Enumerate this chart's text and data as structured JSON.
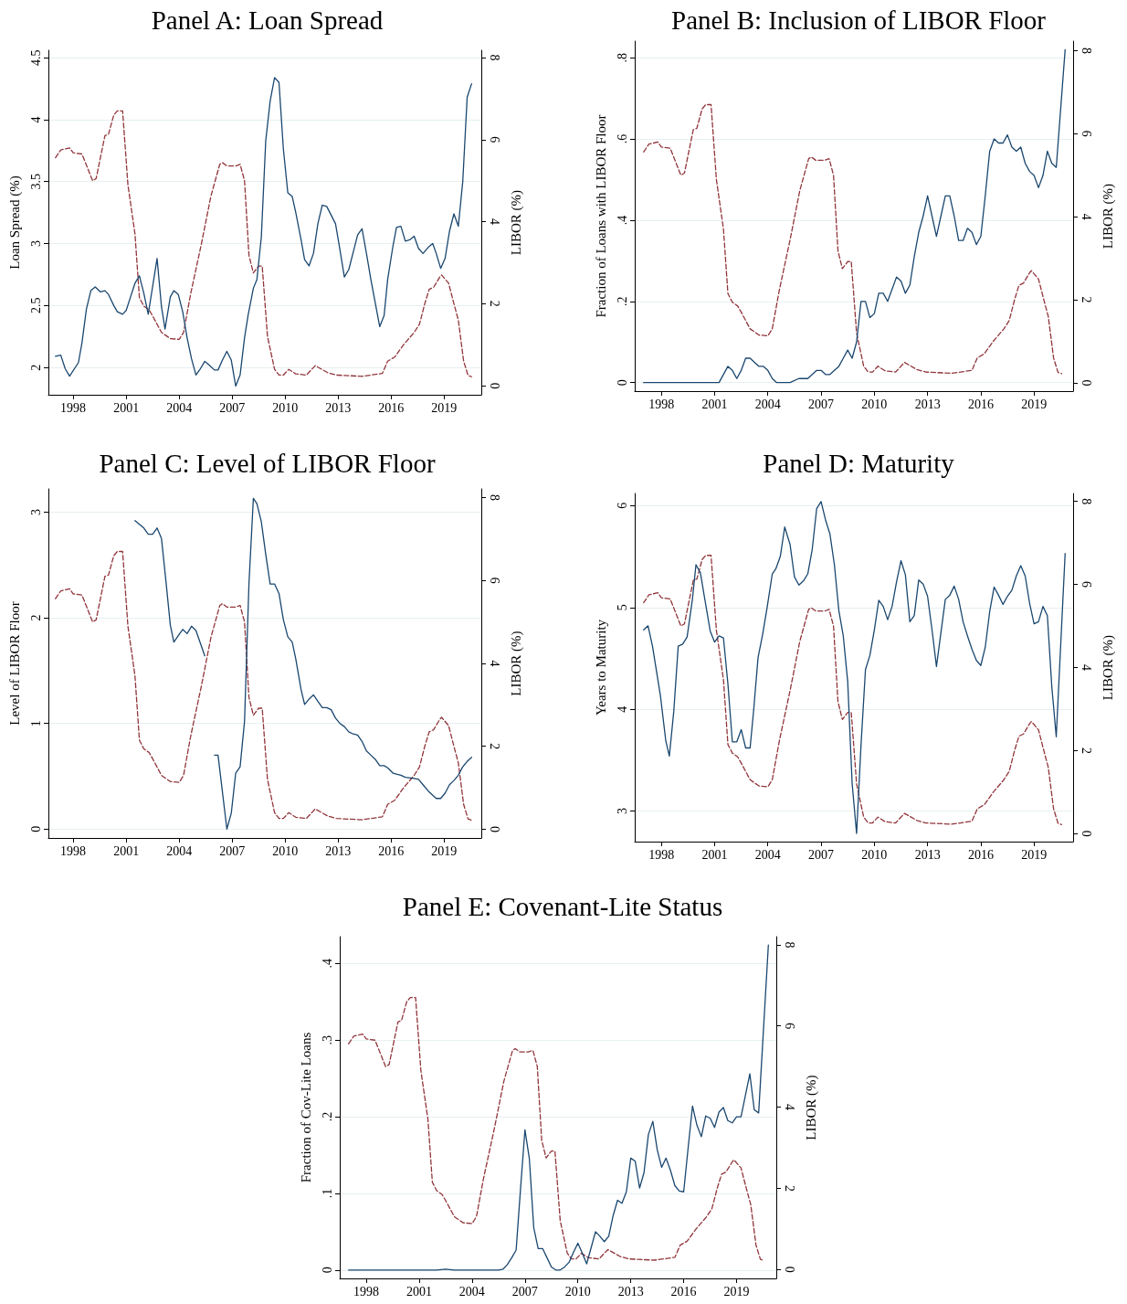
{
  "chart_data": [
    {
      "type": "line",
      "title": "Panel A: Loan Spread",
      "ylabel": "Loan Spread (%)",
      "y2label": "LIBOR (%)",
      "xlim": [
        1996.6,
        2021.1
      ],
      "xticks": [
        1998,
        2001,
        2004,
        2007,
        2010,
        2013,
        2016,
        2019
      ],
      "ylim": [
        1.78,
        4.56
      ],
      "yticks": [
        2,
        2.5,
        3,
        3.5,
        4,
        4.5
      ],
      "y2lim": [
        -0.22,
        8.18
      ],
      "y2ticks": [
        0,
        2,
        4,
        6,
        8
      ],
      "grid": "y",
      "marker": "none",
      "series": [
        {
          "color": "#1a476f",
          "line_style": "solid",
          "x": [
            1997.0,
            1997.3,
            1997.55,
            1997.8,
            1998.3,
            1998.5,
            1998.75,
            1999.0,
            1999.25,
            1999.55,
            1999.8,
            2000.0,
            2000.3,
            2000.5,
            2000.8,
            2001.0,
            2001.25,
            2001.5,
            2001.75,
            2002.0,
            2002.25,
            2002.75,
            2003.0,
            2003.2,
            2003.5,
            2003.7,
            2003.95,
            2004.2,
            2004.45,
            2004.7,
            2004.95,
            2005.2,
            2005.45,
            2005.7,
            2006.0,
            2006.2,
            2006.45,
            2006.7,
            2006.95,
            2007.2,
            2007.45,
            2007.7,
            2007.9,
            2008.2,
            2008.4,
            2008.65,
            2008.9,
            2009.15,
            2009.4,
            2009.65,
            2009.9,
            2010.15,
            2010.4,
            2010.6,
            2010.9,
            2011.1,
            2011.35,
            2011.6,
            2011.85,
            2012.1,
            2012.35,
            2012.6,
            2012.85,
            2013.1,
            2013.35,
            2013.6,
            2013.85,
            2014.1,
            2014.35,
            2014.6,
            2014.85,
            2015.1,
            2015.35,
            2015.6,
            2015.8,
            2016.1,
            2016.3,
            2016.55,
            2016.8,
            2017.05,
            2017.3,
            2017.55,
            2017.8,
            2018.1,
            2018.35,
            2018.55,
            2018.8,
            2019.05,
            2019.3,
            2019.55,
            2019.8,
            2020.05,
            2020.3,
            2020.55
          ],
          "values": [
            2.09,
            2.1,
            1.99,
            1.93,
            2.04,
            2.2,
            2.47,
            2.62,
            2.65,
            2.61,
            2.62,
            2.59,
            2.5,
            2.45,
            2.43,
            2.46,
            2.57,
            2.68,
            2.74,
            2.6,
            2.43,
            2.88,
            2.49,
            2.31,
            2.57,
            2.62,
            2.59,
            2.45,
            2.24,
            2.07,
            1.94,
            1.99,
            2.05,
            2.02,
            1.98,
            1.98,
            2.06,
            2.13,
            2.06,
            1.85,
            1.94,
            2.24,
            2.42,
            2.64,
            2.71,
            3.05,
            3.83,
            4.15,
            4.34,
            4.3,
            3.76,
            3.41,
            3.38,
            3.25,
            3.03,
            2.87,
            2.82,
            2.92,
            3.16,
            3.31,
            3.3,
            3.23,
            3.16,
            2.95,
            2.73,
            2.79,
            2.93,
            3.07,
            3.12,
            2.92,
            2.71,
            2.52,
            2.33,
            2.42,
            2.71,
            2.98,
            3.13,
            3.14,
            3.02,
            3.03,
            3.06,
            2.96,
            2.92,
            2.97,
            3.0,
            2.92,
            2.8,
            2.88,
            3.1,
            3.24,
            3.14,
            3.5,
            4.18,
            4.29
          ]
        },
        {
          "color": "#90353b",
          "line_style": "dashed",
          "axis": "y2",
          "x": [
            1997.0,
            1997.3,
            1997.8,
            1998.0,
            1998.5,
            1999.1,
            1999.3,
            1999.8,
            2000.0,
            2000.3,
            2000.5,
            2000.8,
            2001.1,
            2001.5,
            2001.75,
            2002.0,
            2002.3,
            2002.5,
            2003.0,
            2003.5,
            2004.0,
            2004.25,
            2004.65,
            2005.25,
            2005.8,
            2006.3,
            2006.45,
            2006.7,
            2007.2,
            2007.45,
            2007.7,
            2007.95,
            2008.2,
            2008.5,
            2008.7,
            2009.0,
            2009.4,
            2009.65,
            2009.9,
            2010.2,
            2010.6,
            2011.2,
            2011.7,
            2012.4,
            2012.9,
            2014.35,
            2015.5,
            2015.8,
            2016.2,
            2016.7,
            2017.3,
            2017.6,
            2017.9,
            2018.15,
            2018.4,
            2018.75,
            2018.85,
            2019.25,
            2019.55,
            2019.8,
            2020.1,
            2020.35,
            2020.55
          ],
          "values": [
            5.56,
            5.75,
            5.8,
            5.68,
            5.65,
            5.0,
            5.05,
            6.1,
            6.13,
            6.6,
            6.7,
            6.7,
            4.9,
            3.7,
            2.15,
            1.94,
            1.85,
            1.7,
            1.3,
            1.15,
            1.13,
            1.3,
            2.24,
            3.44,
            4.63,
            5.4,
            5.44,
            5.36,
            5.36,
            5.4,
            5.0,
            3.18,
            2.75,
            2.92,
            2.92,
            1.2,
            0.4,
            0.26,
            0.26,
            0.4,
            0.29,
            0.26,
            0.49,
            0.32,
            0.26,
            0.23,
            0.3,
            0.6,
            0.7,
            1.0,
            1.3,
            1.5,
            2.0,
            2.35,
            2.4,
            2.65,
            2.7,
            2.5,
            2.0,
            1.6,
            0.6,
            0.25,
            0.22
          ]
        }
      ]
    },
    {
      "type": "line",
      "title": "Panel B: Inclusion of LIBOR Floor",
      "ylabel": "Fraction of Loans with LIBOR Floor",
      "y2label": "LIBOR (%)",
      "xlim": [
        1996.5,
        2021.2
      ],
      "xticks": [
        1998,
        2001,
        2004,
        2007,
        2010,
        2013,
        2016,
        2019
      ],
      "ylim": [
        -0.021,
        0.841
      ],
      "yticks": [
        0,
        {
          "value": 0.2,
          "label": ".2"
        },
        {
          "value": 0.4,
          "label": ".4"
        },
        {
          "value": 0.6,
          "label": ".6"
        },
        {
          "value": 0.8,
          "label": ".8"
        }
      ],
      "y2lim": [
        -0.2,
        8.23
      ],
      "y2ticks": [
        0,
        2,
        4,
        6,
        8
      ],
      "grid": "y",
      "marker": "none",
      "series": [
        {
          "color": "#1a476f",
          "line_style": "solid",
          "x": [
            1997.0,
            2001.25,
            2001.75,
            2002.0,
            2002.25,
            2002.5,
            2002.75,
            2003.0,
            2003.25,
            2003.5,
            2003.75,
            2004.0,
            2004.25,
            2004.5,
            2005.25,
            2005.75,
            2006.0,
            2006.25,
            2006.5,
            2006.75,
            2007.0,
            2007.25,
            2007.5,
            2007.75,
            2008.0,
            2008.25,
            2008.5,
            2008.75,
            2009.0,
            2009.25,
            2009.5,
            2009.75,
            2010.0,
            2010.25,
            2010.5,
            2010.75,
            2011.0,
            2011.25,
            2011.5,
            2011.75,
            2012.0,
            2012.25,
            2012.5,
            2012.75,
            2013.0,
            2013.25,
            2013.5,
            2013.75,
            2014.0,
            2014.25,
            2014.5,
            2014.75,
            2015.0,
            2015.25,
            2015.5,
            2015.75,
            2016.0,
            2016.25,
            2016.5,
            2016.75,
            2017.0,
            2017.25,
            2017.5,
            2017.75,
            2018.0,
            2018.25,
            2018.5,
            2018.75,
            2019.0,
            2019.25,
            2019.5,
            2019.75,
            2020.0,
            2020.25,
            2020.75
          ],
          "values": [
            0,
            0,
            0.04,
            0.03,
            0.01,
            0.03,
            0.06,
            0.06,
            0.05,
            0.04,
            0.04,
            0.03,
            0.01,
            0,
            0,
            0.01,
            0.01,
            0.01,
            0.02,
            0.03,
            0.03,
            0.02,
            0.02,
            0.03,
            0.04,
            0.06,
            0.08,
            0.06,
            0.1,
            0.2,
            0.2,
            0.16,
            0.17,
            0.22,
            0.22,
            0.2,
            0.23,
            0.26,
            0.25,
            0.22,
            0.24,
            0.31,
            0.37,
            0.41,
            0.46,
            0.41,
            0.36,
            0.41,
            0.46,
            0.46,
            0.41,
            0.35,
            0.35,
            0.38,
            0.37,
            0.34,
            0.36,
            0.46,
            0.57,
            0.6,
            0.59,
            0.59,
            0.61,
            0.58,
            0.57,
            0.58,
            0.54,
            0.52,
            0.51,
            0.48,
            0.51,
            0.57,
            0.54,
            0.53,
            0.82
          ]
        },
        {
          "color": "#90353b",
          "line_style": "dashed",
          "axis": "y2",
          "x": [
            1997.0,
            1997.3,
            1997.8,
            1998.0,
            1998.5,
            1999.1,
            1999.3,
            1999.8,
            2000.0,
            2000.3,
            2000.5,
            2000.8,
            2001.1,
            2001.5,
            2001.75,
            2002.0,
            2002.3,
            2002.5,
            2003.0,
            2003.5,
            2004.0,
            2004.25,
            2004.65,
            2005.25,
            2005.8,
            2006.3,
            2006.45,
            2006.7,
            2007.2,
            2007.45,
            2007.7,
            2007.95,
            2008.2,
            2008.5,
            2008.7,
            2009.0,
            2009.4,
            2009.65,
            2009.9,
            2010.2,
            2010.6,
            2011.2,
            2011.7,
            2012.4,
            2012.9,
            2014.35,
            2015.5,
            2015.8,
            2016.2,
            2016.7,
            2017.3,
            2017.6,
            2017.9,
            2018.15,
            2018.4,
            2018.75,
            2018.85,
            2019.25,
            2019.55,
            2019.8,
            2020.1,
            2020.35,
            2020.55
          ],
          "values": [
            5.56,
            5.75,
            5.8,
            5.68,
            5.65,
            5.0,
            5.05,
            6.1,
            6.13,
            6.6,
            6.7,
            6.7,
            4.9,
            3.7,
            2.15,
            1.94,
            1.85,
            1.7,
            1.3,
            1.15,
            1.13,
            1.3,
            2.24,
            3.44,
            4.63,
            5.4,
            5.44,
            5.36,
            5.36,
            5.4,
            5.0,
            3.18,
            2.75,
            2.92,
            2.92,
            1.2,
            0.4,
            0.26,
            0.26,
            0.4,
            0.29,
            0.26,
            0.49,
            0.32,
            0.26,
            0.23,
            0.3,
            0.6,
            0.7,
            1.0,
            1.3,
            1.5,
            2.0,
            2.35,
            2.4,
            2.65,
            2.7,
            2.5,
            2.0,
            1.6,
            0.6,
            0.25,
            0.22
          ]
        }
      ]
    },
    {
      "type": "line",
      "title": "Panel C: Level of LIBOR Floor",
      "ylabel": "Level of LIBOR Floor",
      "y2label": "LIBOR (%)",
      "xlim": [
        1996.6,
        2021.1
      ],
      "xticks": [
        1998,
        2001,
        2004,
        2007,
        2010,
        2013,
        2016,
        2019
      ],
      "ylim": [
        -0.084,
        3.22
      ],
      "yticks": [
        0,
        1,
        2,
        3
      ],
      "y2lim": [
        -0.21,
        8.21
      ],
      "y2ticks": [
        0,
        2,
        4,
        6,
        8
      ],
      "grid": "y",
      "marker": "none",
      "series": [
        {
          "color": "#1a476f",
          "line_style": "solid",
          "x": [
            2001.5,
            2002.0,
            2002.25,
            2002.5,
            2002.75,
            2003.0,
            2003.25,
            2003.5,
            2003.7,
            2003.95,
            2004.2,
            2004.45,
            2004.7,
            2004.95,
            2005.45,
            2005.7,
            2006.0,
            2006.2,
            2006.7,
            2006.95,
            2007.2,
            2007.45,
            2007.7,
            2007.95,
            2008.2,
            2008.4,
            2008.65,
            2008.9,
            2009.15,
            2009.4,
            2009.65,
            2009.9,
            2010.15,
            2010.4,
            2010.6,
            2010.9,
            2011.1,
            2011.35,
            2011.6,
            2012.1,
            2012.35,
            2012.6,
            2012.85,
            2013.1,
            2013.35,
            2013.6,
            2013.85,
            2014.1,
            2014.35,
            2014.6,
            2014.85,
            2015.1,
            2015.35,
            2015.6,
            2015.8,
            2016.1,
            2016.3,
            2016.55,
            2016.8,
            2017.3,
            2017.55,
            2017.8,
            2018.1,
            2018.35,
            2018.55,
            2018.8,
            2019.05,
            2019.3,
            2019.55,
            2019.8,
            2020.05,
            2020.3,
            2020.55
          ],
          "values": [
            2.92,
            2.85,
            2.79,
            2.79,
            2.85,
            2.75,
            2.35,
            1.93,
            1.77,
            1.83,
            1.89,
            1.85,
            1.92,
            1.88,
            1.64,
            null,
            0.7,
            0.7,
            0,
            0.15,
            0.53,
            0.59,
            1.02,
            2.32,
            3.13,
            3.08,
            2.91,
            2.6,
            2.32,
            2.32,
            2.23,
            1.98,
            1.82,
            1.77,
            1.61,
            1.32,
            1.18,
            1.23,
            1.27,
            1.15,
            1.15,
            1.13,
            1.05,
            1.0,
            0.97,
            0.92,
            0.9,
            0.89,
            0.83,
            0.74,
            0.7,
            0.66,
            0.6,
            0.6,
            0.58,
            0.53,
            0.52,
            0.51,
            0.49,
            0.48,
            0.47,
            0.42,
            0.36,
            0.32,
            0.29,
            0.29,
            0.34,
            0.42,
            0.46,
            0.51,
            0.59,
            0.64,
            0.68
          ]
        },
        {
          "color": "#90353b",
          "line_style": "dashed",
          "axis": "y2",
          "x": [
            1997.0,
            1997.3,
            1997.8,
            1998.0,
            1998.5,
            1999.1,
            1999.3,
            1999.8,
            2000.0,
            2000.3,
            2000.5,
            2000.8,
            2001.1,
            2001.5,
            2001.75,
            2002.0,
            2002.3,
            2002.5,
            2003.0,
            2003.5,
            2004.0,
            2004.25,
            2004.65,
            2005.25,
            2005.8,
            2006.3,
            2006.45,
            2006.7,
            2007.2,
            2007.45,
            2007.7,
            2007.95,
            2008.2,
            2008.5,
            2008.7,
            2009.0,
            2009.4,
            2009.65,
            2009.9,
            2010.2,
            2010.6,
            2011.2,
            2011.7,
            2012.4,
            2012.9,
            2014.35,
            2015.5,
            2015.8,
            2016.2,
            2016.7,
            2017.3,
            2017.6,
            2017.9,
            2018.15,
            2018.4,
            2018.75,
            2018.85,
            2019.25,
            2019.55,
            2019.8,
            2020.1,
            2020.35,
            2020.55
          ],
          "values": [
            5.56,
            5.75,
            5.8,
            5.68,
            5.65,
            5.0,
            5.05,
            6.1,
            6.13,
            6.6,
            6.7,
            6.7,
            4.9,
            3.7,
            2.15,
            1.94,
            1.85,
            1.7,
            1.3,
            1.15,
            1.13,
            1.3,
            2.24,
            3.44,
            4.63,
            5.4,
            5.44,
            5.36,
            5.36,
            5.4,
            5.0,
            3.18,
            2.75,
            2.92,
            2.92,
            1.2,
            0.4,
            0.26,
            0.26,
            0.4,
            0.29,
            0.26,
            0.49,
            0.32,
            0.26,
            0.23,
            0.3,
            0.6,
            0.7,
            1.0,
            1.3,
            1.5,
            2.0,
            2.35,
            2.4,
            2.65,
            2.7,
            2.5,
            2.0,
            1.6,
            0.6,
            0.25,
            0.22
          ]
        }
      ]
    },
    {
      "type": "line",
      "title": "Panel D: Maturity",
      "ylabel": "Years to Maturity",
      "y2label": "LIBOR (%)",
      "xlim": [
        1996.5,
        2021.2
      ],
      "xticks": [
        1998,
        2001,
        2004,
        2007,
        2010,
        2013,
        2016,
        2019
      ],
      "ylim": [
        2.7,
        6.12
      ],
      "yticks": [
        3,
        4,
        5,
        6
      ],
      "y2lim": [
        -0.19,
        8.19
      ],
      "y2ticks": [
        0,
        2,
        4,
        6,
        8
      ],
      "grid": "y",
      "marker": "none",
      "series": [
        {
          "color": "#1a476f",
          "line_style": "solid",
          "x": [
            1997.0,
            1997.25,
            1997.5,
            1997.95,
            1998.25,
            1998.45,
            1998.7,
            1998.95,
            1999.2,
            1999.45,
            1999.75,
            1999.95,
            2000.2,
            2000.45,
            2000.75,
            2001.0,
            2001.25,
            2001.5,
            2001.75,
            2002.0,
            2002.25,
            2002.5,
            2002.75,
            2003.0,
            2003.2,
            2003.45,
            2003.7,
            2003.95,
            2004.25,
            2004.45,
            2004.7,
            2004.95,
            2005.25,
            2005.5,
            2005.75,
            2006.0,
            2006.25,
            2006.5,
            2006.75,
            2007.0,
            2007.25,
            2007.5,
            2007.75,
            2008.0,
            2008.25,
            2008.5,
            2008.75,
            2009.0,
            2009.25,
            2009.5,
            2009.75,
            2010.0,
            2010.25,
            2010.5,
            2010.75,
            2011.0,
            2011.25,
            2011.5,
            2011.75,
            2012.0,
            2012.25,
            2012.5,
            2012.75,
            2013.0,
            2013.25,
            2013.5,
            2013.75,
            2014.0,
            2014.25,
            2014.5,
            2014.75,
            2015.0,
            2015.25,
            2015.5,
            2015.75,
            2016.0,
            2016.25,
            2016.5,
            2016.75,
            2017.0,
            2017.25,
            2017.5,
            2017.75,
            2018.0,
            2018.25,
            2018.5,
            2018.75,
            2019.0,
            2019.25,
            2019.5,
            2019.75,
            2020.0,
            2020.25,
            2020.75
          ],
          "values": [
            4.78,
            4.82,
            4.62,
            4.13,
            3.69,
            3.54,
            3.98,
            4.62,
            4.64,
            4.71,
            5.08,
            5.42,
            5.34,
            5.08,
            4.77,
            4.66,
            4.72,
            4.7,
            4.25,
            3.68,
            3.68,
            3.8,
            3.62,
            3.62,
            3.99,
            4.51,
            4.73,
            4.99,
            5.33,
            5.38,
            5.5,
            5.79,
            5.62,
            5.3,
            5.22,
            5.26,
            5.33,
            5.57,
            5.97,
            6.04,
            5.86,
            5.72,
            5.42,
            4.97,
            4.72,
            4.27,
            3.27,
            2.78,
            3.65,
            4.39,
            4.53,
            4.78,
            5.07,
            5.01,
            4.88,
            5.01,
            5.25,
            5.46,
            5.32,
            4.86,
            4.92,
            5.27,
            5.23,
            5.11,
            4.78,
            4.42,
            4.75,
            5.08,
            5.12,
            5.21,
            5.08,
            4.86,
            4.72,
            4.59,
            4.48,
            4.43,
            4.61,
            4.96,
            5.2,
            5.12,
            5.03,
            5.11,
            5.17,
            5.31,
            5.41,
            5.31,
            5.04,
            4.84,
            4.86,
            5.01,
            4.92,
            4.22,
            3.73,
            5.53
          ]
        },
        {
          "color": "#90353b",
          "line_style": "dashed",
          "axis": "y2",
          "x": [
            1997.0,
            1997.3,
            1997.8,
            1998.0,
            1998.5,
            1999.1,
            1999.3,
            1999.8,
            2000.0,
            2000.3,
            2000.5,
            2000.8,
            2001.1,
            2001.5,
            2001.75,
            2002.0,
            2002.3,
            2002.5,
            2003.0,
            2003.5,
            2004.0,
            2004.25,
            2004.65,
            2005.25,
            2005.8,
            2006.3,
            2006.45,
            2006.7,
            2007.2,
            2007.45,
            2007.7,
            2007.95,
            2008.2,
            2008.5,
            2008.7,
            2009.0,
            2009.4,
            2009.65,
            2009.9,
            2010.2,
            2010.6,
            2011.2,
            2011.7,
            2012.4,
            2012.9,
            2014.35,
            2015.5,
            2015.8,
            2016.2,
            2016.7,
            2017.3,
            2017.6,
            2017.9,
            2018.15,
            2018.4,
            2018.75,
            2018.85,
            2019.25,
            2019.55,
            2019.8,
            2020.1,
            2020.35,
            2020.55
          ],
          "values": [
            5.56,
            5.75,
            5.8,
            5.68,
            5.65,
            5.0,
            5.05,
            6.1,
            6.13,
            6.6,
            6.7,
            6.7,
            4.9,
            3.7,
            2.15,
            1.94,
            1.85,
            1.7,
            1.3,
            1.15,
            1.13,
            1.3,
            2.24,
            3.44,
            4.63,
            5.4,
            5.44,
            5.36,
            5.36,
            5.4,
            5.0,
            3.18,
            2.75,
            2.92,
            2.92,
            1.2,
            0.4,
            0.26,
            0.26,
            0.4,
            0.29,
            0.26,
            0.49,
            0.32,
            0.26,
            0.23,
            0.3,
            0.6,
            0.7,
            1.0,
            1.3,
            1.5,
            2.0,
            2.35,
            2.4,
            2.65,
            2.7,
            2.5,
            2.0,
            1.6,
            0.6,
            0.25,
            0.22
          ]
        }
      ]
    },
    {
      "type": "line",
      "title": "Panel E: Covenant-Lite Status",
      "ylabel": "Fraction of Cov-Lite Loans",
      "y2label": "LIBOR (%)",
      "xlim": [
        1996.5,
        2021.25
      ],
      "xticks": [
        1998,
        2001,
        2004,
        2007,
        2010,
        2013,
        2016,
        2019
      ],
      "ylim": [
        -0.011,
        0.435
      ],
      "yticks": [
        0,
        {
          "value": 0.1,
          "label": ".1"
        },
        {
          "value": 0.2,
          "label": ".2"
        },
        {
          "value": 0.3,
          "label": ".3"
        },
        {
          "value": 0.4,
          "label": ".4"
        }
      ],
      "y2lim": [
        -0.22,
        8.2
      ],
      "y2ticks": [
        0,
        2,
        4,
        6,
        8
      ],
      "grid": "y",
      "marker": "none",
      "series": [
        {
          "color": "#1a476f",
          "line_style": "solid",
          "x": [
            1997.0,
            2002.0,
            2002.5,
            2003.0,
            2005.5,
            2005.75,
            2006.0,
            2006.25,
            2006.5,
            2006.75,
            2007.0,
            2007.25,
            2007.5,
            2007.75,
            2008.0,
            2008.25,
            2008.5,
            2008.75,
            2009.0,
            2009.25,
            2009.5,
            2009.75,
            2010.0,
            2010.25,
            2010.5,
            2010.75,
            2011.0,
            2011.25,
            2011.5,
            2011.75,
            2012.0,
            2012.25,
            2012.5,
            2012.75,
            2013.0,
            2013.25,
            2013.5,
            2013.75,
            2014.0,
            2014.25,
            2014.5,
            2014.75,
            2015.0,
            2015.25,
            2015.5,
            2015.75,
            2016.0,
            2016.25,
            2016.5,
            2016.75,
            2017.0,
            2017.25,
            2017.5,
            2017.75,
            2018.0,
            2018.25,
            2018.5,
            2018.75,
            2019.0,
            2019.25,
            2019.5,
            2019.75,
            2020.0,
            2020.25,
            2020.8
          ],
          "values": [
            0,
            0,
            0.001,
            0,
            0,
            0.001,
            0.007,
            0.016,
            0.026,
            0.106,
            0.183,
            0.145,
            0.055,
            0.028,
            0.028,
            0.016,
            0.004,
            0,
            0,
            0.004,
            0.01,
            0.023,
            0.035,
            0.022,
            0.008,
            0.029,
            0.05,
            0.044,
            0.037,
            0.044,
            0.071,
            0.091,
            0.087,
            0.102,
            0.146,
            0.142,
            0.107,
            0.127,
            0.177,
            0.194,
            0.157,
            0.134,
            0.146,
            0.13,
            0.11,
            0.103,
            0.102,
            0.159,
            0.214,
            0.189,
            0.174,
            0.201,
            0.198,
            0.186,
            0.206,
            0.212,
            0.195,
            0.192,
            0.2,
            0.2,
            0.228,
            0.256,
            0.209,
            0.205,
            0.424
          ]
        },
        {
          "color": "#90353b",
          "line_style": "dashed",
          "axis": "y2",
          "x": [
            1997.0,
            1997.3,
            1997.8,
            1998.0,
            1998.5,
            1999.1,
            1999.3,
            1999.8,
            2000.0,
            2000.3,
            2000.5,
            2000.8,
            2001.1,
            2001.5,
            2001.75,
            2002.0,
            2002.3,
            2002.5,
            2003.0,
            2003.5,
            2004.0,
            2004.25,
            2004.65,
            2005.25,
            2005.8,
            2006.3,
            2006.45,
            2006.7,
            2007.2,
            2007.45,
            2007.7,
            2007.95,
            2008.2,
            2008.5,
            2008.7,
            2009.0,
            2009.4,
            2009.65,
            2009.9,
            2010.2,
            2010.6,
            2011.2,
            2011.7,
            2012.4,
            2012.9,
            2014.35,
            2015.5,
            2015.8,
            2016.2,
            2016.7,
            2017.3,
            2017.6,
            2017.9,
            2018.15,
            2018.4,
            2018.75,
            2018.85,
            2019.25,
            2019.55,
            2019.8,
            2020.1,
            2020.35,
            2020.55
          ],
          "values": [
            5.56,
            5.75,
            5.8,
            5.68,
            5.65,
            5.0,
            5.05,
            6.1,
            6.13,
            6.6,
            6.7,
            6.7,
            4.9,
            3.7,
            2.15,
            1.94,
            1.85,
            1.7,
            1.3,
            1.15,
            1.13,
            1.3,
            2.24,
            3.44,
            4.63,
            5.4,
            5.44,
            5.36,
            5.36,
            5.4,
            5.0,
            3.18,
            2.75,
            2.92,
            2.92,
            1.2,
            0.4,
            0.26,
            0.26,
            0.4,
            0.29,
            0.26,
            0.49,
            0.32,
            0.26,
            0.23,
            0.3,
            0.6,
            0.7,
            1.0,
            1.3,
            1.5,
            2.0,
            2.35,
            2.4,
            2.65,
            2.7,
            2.5,
            2.0,
            1.6,
            0.6,
            0.25,
            0.22
          ]
        }
      ]
    }
  ]
}
